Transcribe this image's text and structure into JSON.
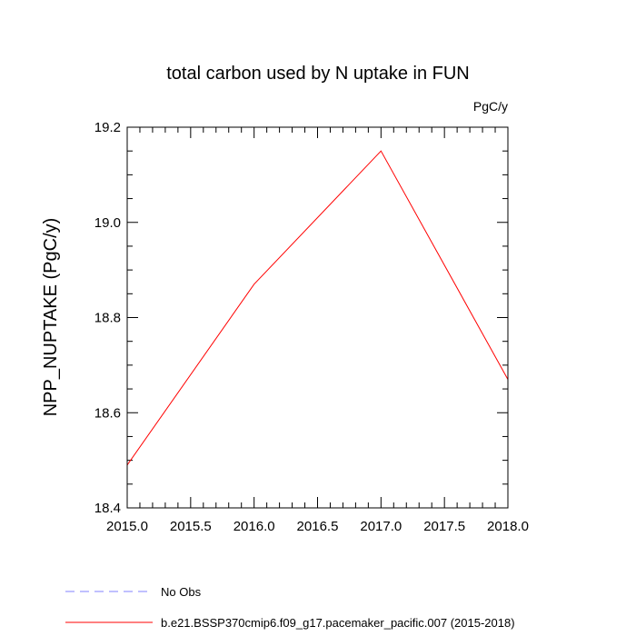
{
  "chart_data": {
    "type": "line",
    "title": "total carbon used by N uptake in FUN",
    "units": "PgC/y",
    "xlabel": "",
    "ylabel": "NPP_NUPTAKE  (PgC/y)",
    "xlim": [
      2015.0,
      2018.0
    ],
    "ylim": [
      18.4,
      19.2
    ],
    "x_ticks": [
      "2015.0",
      "2015.5",
      "2016.0",
      "2016.5",
      "2017.0",
      "2017.5",
      "2018.0"
    ],
    "y_ticks": [
      "18.4",
      "18.6",
      "18.8",
      "19.0",
      "19.2"
    ],
    "grid": false,
    "series": [
      {
        "name": "b.e21.BSSP370cmip6.f09_g17.pacemaker_pacific.007 (2015-2018)",
        "color": "#ff0000",
        "style": "solid",
        "x": [
          2015.0,
          2016.0,
          2017.0,
          2018.0
        ],
        "y": [
          18.49,
          18.87,
          19.15,
          18.67
        ]
      }
    ],
    "legend": [
      {
        "label": "No Obs",
        "color": "#8080ff",
        "style": "dashed"
      },
      {
        "label": "b.e21.BSSP370cmip6.f09_g17.pacemaker_pacific.007 (2015-2018)",
        "color": "#ff0000",
        "style": "solid"
      }
    ],
    "legend_placement": "bottom-left"
  }
}
